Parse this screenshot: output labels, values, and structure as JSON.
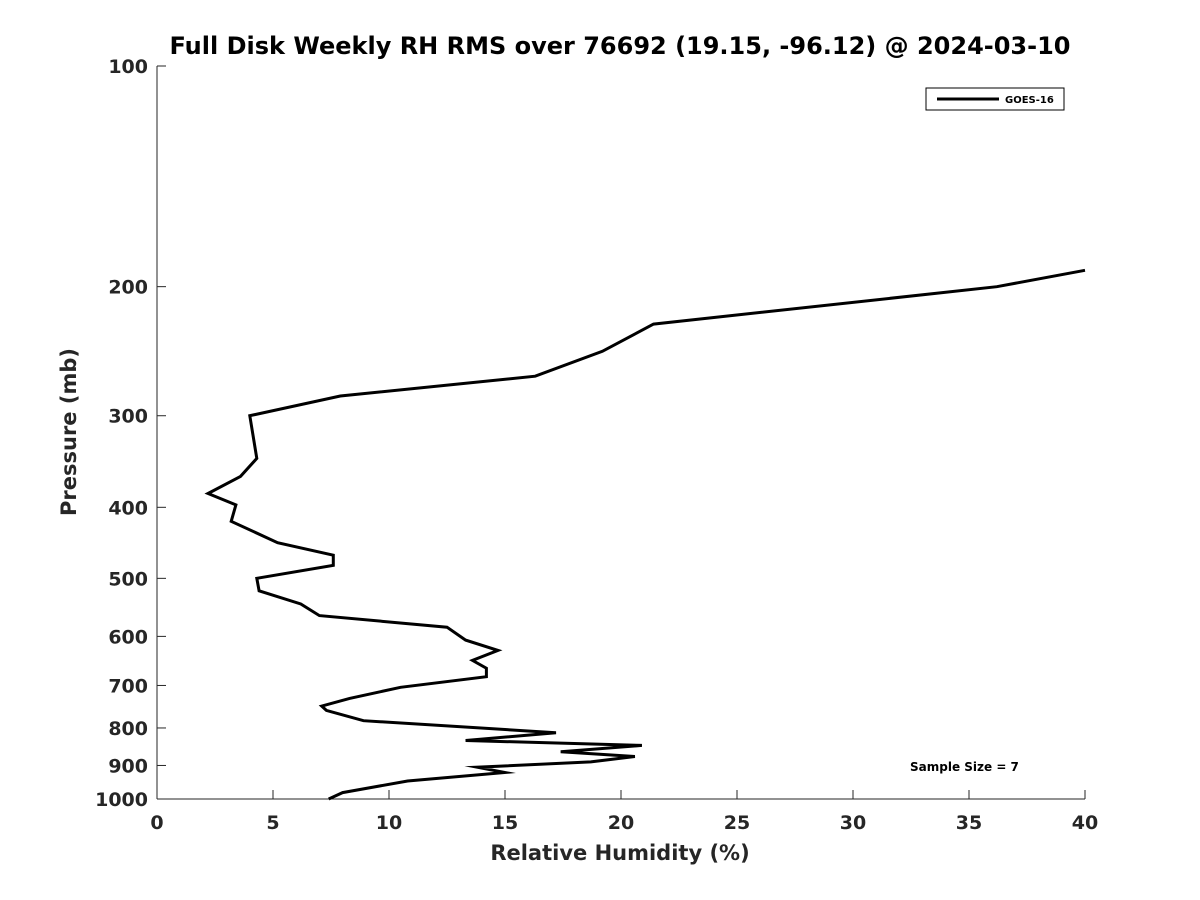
{
  "chart_data": {
    "type": "line",
    "title": "Full Disk Weekly RH RMS over 76692 (19.15, -96.12) @ 2024-03-10",
    "xlabel": "Relative Humidity (%)",
    "ylabel": "Pressure (mb)",
    "xlim": [
      0,
      40
    ],
    "ylim": [
      1000,
      100
    ],
    "y_scale": "log",
    "x_ticks": [
      0,
      5,
      10,
      15,
      20,
      25,
      30,
      35,
      40
    ],
    "y_ticks": [
      100,
      200,
      300,
      400,
      500,
      600,
      700,
      800,
      900,
      1000
    ],
    "grid": false,
    "legend_placement": "top-right",
    "annotation": "Sample Size = 7",
    "series": [
      {
        "name": "GOES-16",
        "color": "#000000",
        "points": [
          [
            40.0,
            190
          ],
          [
            36.2,
            200
          ],
          [
            21.4,
            225
          ],
          [
            19.2,
            245
          ],
          [
            16.3,
            265
          ],
          [
            7.9,
            282
          ],
          [
            4.0,
            300
          ],
          [
            4.3,
            343
          ],
          [
            3.6,
            363
          ],
          [
            2.2,
            383
          ],
          [
            3.4,
            397
          ],
          [
            3.2,
            418
          ],
          [
            5.2,
            447
          ],
          [
            7.6,
            465
          ],
          [
            7.6,
            480
          ],
          [
            4.3,
            500
          ],
          [
            4.4,
            520
          ],
          [
            6.2,
            542
          ],
          [
            7.0,
            562
          ],
          [
            12.5,
            583
          ],
          [
            13.3,
            607
          ],
          [
            14.7,
            627
          ],
          [
            13.6,
            647
          ],
          [
            14.2,
            663
          ],
          [
            14.2,
            681
          ],
          [
            10.5,
            704
          ],
          [
            8.3,
            729
          ],
          [
            7.1,
            747
          ],
          [
            7.3,
            757
          ],
          [
            8.9,
            782
          ],
          [
            17.2,
            812
          ],
          [
            13.3,
            832
          ],
          [
            20.9,
            845
          ],
          [
            17.4,
            862
          ],
          [
            20.6,
            875
          ],
          [
            18.7,
            890
          ],
          [
            13.8,
            905
          ],
          [
            15.0,
            920
          ],
          [
            10.8,
            945
          ],
          [
            8.0,
            980
          ],
          [
            7.4,
            1000
          ]
        ]
      }
    ]
  }
}
